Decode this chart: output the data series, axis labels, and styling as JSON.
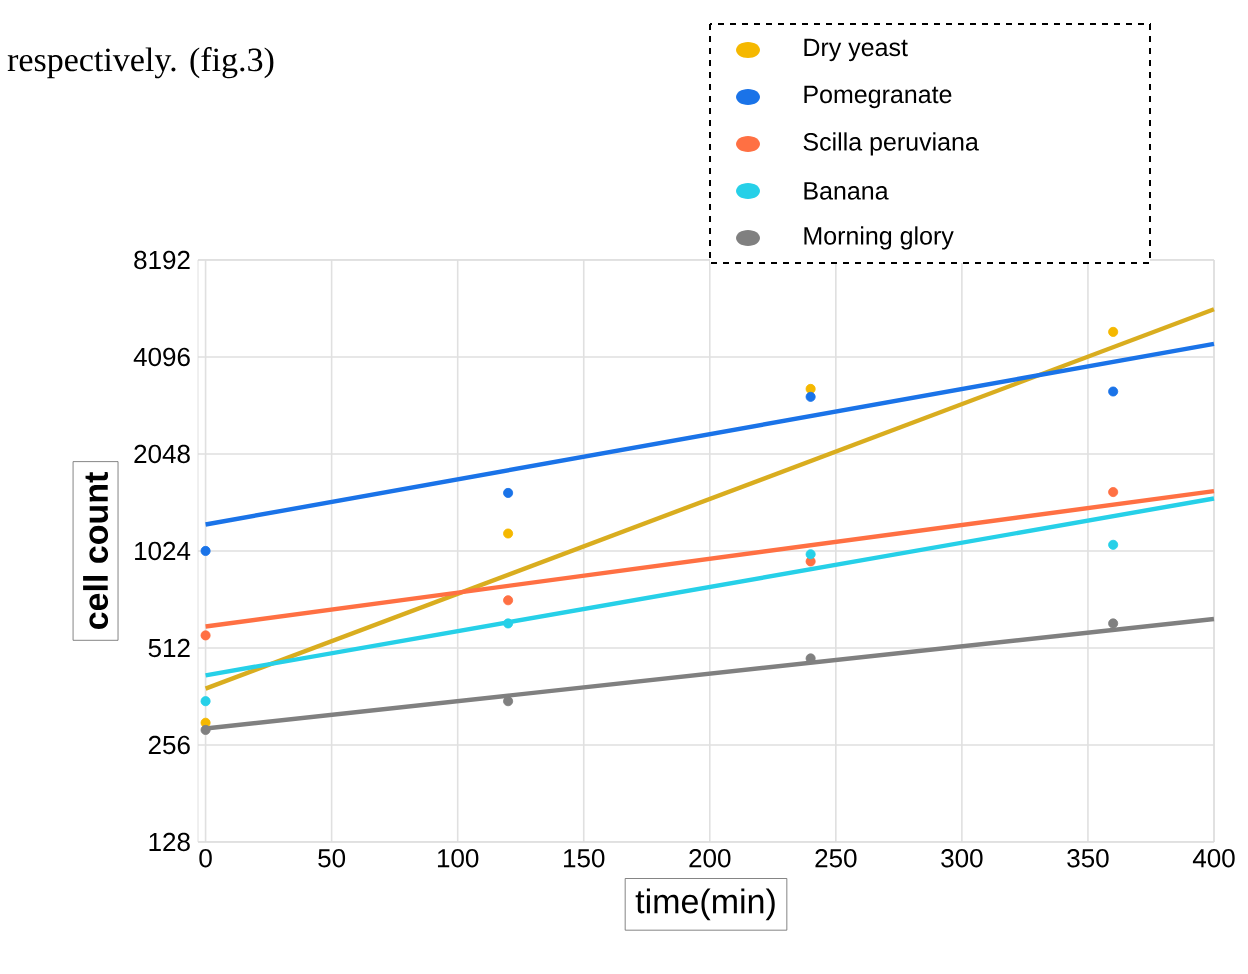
{
  "chart_data": {
    "type": "scatter",
    "annotations": [
      "respectively. (fig.3)"
    ],
    "xlabel": "time(min)",
    "ylabel": "cell count",
    "xlim": [
      -3,
      400
    ],
    "xticks": [
      0,
      50,
      100,
      150,
      200,
      250,
      300,
      350,
      400
    ],
    "ylim": [
      128,
      8192
    ],
    "yticks": [
      128,
      256,
      512,
      1024,
      2048,
      4096,
      8192
    ],
    "log": "y",
    "grid": true,
    "legend": "top right",
    "series": [
      {
        "name": "Dry yeast",
        "color": "#f5b800",
        "x": [
          0,
          120,
          240,
          360
        ],
        "values": [
          300,
          1160,
          3260,
          4900
        ]
      },
      {
        "name": "Pomegranate",
        "color": "#1a73e8",
        "x": [
          0,
          120,
          240,
          360
        ],
        "values": [
          1024,
          1550,
          3080,
          3200
        ]
      },
      {
        "name": "Scilla peruviana",
        "color": "#ff7043",
        "x": [
          0,
          120,
          240,
          360
        ],
        "values": [
          560,
          720,
          950,
          1560
        ]
      },
      {
        "name": "Banana",
        "color": "#26d0e8",
        "x": [
          0,
          120,
          240,
          360
        ],
        "values": [
          350,
          610,
          1000,
          1070
        ]
      },
      {
        "name": "Morning glory",
        "color": "#808080",
        "x": [
          0,
          120,
          240,
          360
        ],
        "values": [
          285,
          350,
          475,
          610
        ]
      },
      {
        "type": "line",
        "color": "#d9ad1f",
        "x": [
          0,
          400
        ],
        "values": [
          383,
          5760
        ]
      },
      {
        "type": "line",
        "color": "#1a73e8",
        "x": [
          0,
          400
        ],
        "values": [
          1237,
          4500
        ]
      },
      {
        "type": "line",
        "color": "#ff7043",
        "x": [
          0,
          400
        ],
        "values": [
          597,
          1570
        ]
      },
      {
        "type": "line",
        "color": "#26d0e8",
        "x": [
          0,
          400
        ],
        "values": [
          421,
          1490
        ]
      },
      {
        "type": "line",
        "color": "#808080",
        "x": [
          0,
          400
        ],
        "values": [
          288,
          630
        ]
      }
    ]
  }
}
